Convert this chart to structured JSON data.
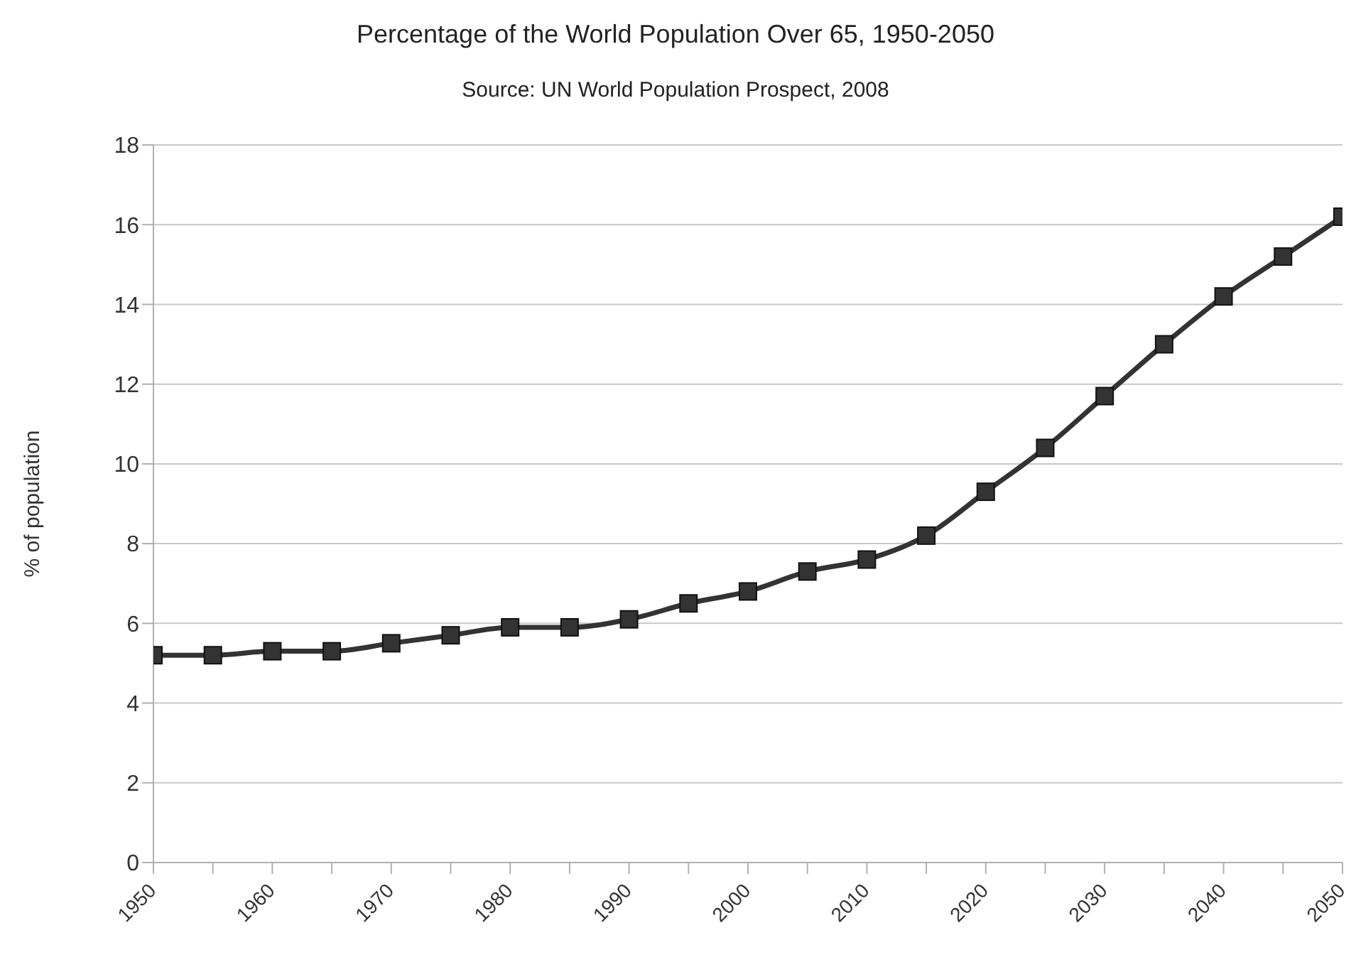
{
  "chart_data": {
    "type": "line",
    "title": "Percentage of the World Population Over 65, 1950-2050",
    "subtitle": "Source: UN World Population Prospect, 2008",
    "ylabel": "% of population",
    "x": [
      1950,
      1955,
      1960,
      1965,
      1970,
      1975,
      1980,
      1985,
      1990,
      1995,
      2000,
      2005,
      2010,
      2015,
      2020,
      2025,
      2030,
      2035,
      2040,
      2045,
      2050
    ],
    "values": [
      5.2,
      5.2,
      5.3,
      5.3,
      5.5,
      5.7,
      5.9,
      5.9,
      6.1,
      6.5,
      6.8,
      7.3,
      7.6,
      8.2,
      9.3,
      10.4,
      11.7,
      13.0,
      14.2,
      15.2,
      16.2
    ],
    "color": "#333333",
    "marker": "square",
    "line_style": "solid",
    "grid": "y",
    "xlim": [
      1950,
      2050
    ],
    "xticks": [
      1950,
      {
        "value": 1955,
        "label": null
      },
      1960,
      {
        "value": 1965,
        "label": null
      },
      1970,
      {
        "value": 1975,
        "label": null
      },
      1980,
      {
        "value": 1985,
        "label": null
      },
      1990,
      {
        "value": 1995,
        "label": null
      },
      2000,
      {
        "value": 2005,
        "label": null
      },
      2010,
      {
        "value": 2015,
        "label": null
      },
      2020,
      {
        "value": 2025,
        "label": null
      },
      2030,
      {
        "value": 2035,
        "label": null
      },
      2040,
      {
        "value": 2045,
        "label": null
      },
      2050
    ],
    "ylim": [
      0,
      18
    ],
    "yticks": [
      0,
      2,
      4,
      6,
      8,
      10,
      12,
      14,
      16,
      18
    ]
  }
}
